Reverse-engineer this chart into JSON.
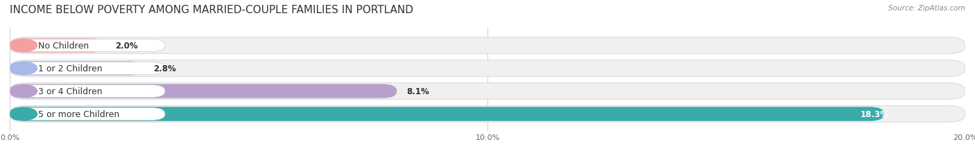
{
  "title": "INCOME BELOW POVERTY AMONG MARRIED-COUPLE FAMILIES IN PORTLAND",
  "source": "Source: ZipAtlas.com",
  "categories": [
    "No Children",
    "1 or 2 Children",
    "3 or 4 Children",
    "5 or more Children"
  ],
  "values": [
    2.0,
    2.8,
    8.1,
    18.3
  ],
  "bar_colors": [
    "#f4a0a0",
    "#a8b8e8",
    "#b8a0cc",
    "#3aabaa"
  ],
  "label_bg_colors": [
    "#f4a0a0",
    "#a8b8e8",
    "#b8a0cc",
    "#3aabaa"
  ],
  "track_color": "#f0f0f0",
  "track_edge_color": "#dddddd",
  "xlim": [
    0,
    20.0
  ],
  "xticks": [
    0.0,
    10.0,
    20.0
  ],
  "xticklabels": [
    "0.0%",
    "10.0%",
    "20.0%"
  ],
  "background_color": "#ffffff",
  "title_fontsize": 11,
  "label_fontsize": 9,
  "value_fontsize": 8.5
}
